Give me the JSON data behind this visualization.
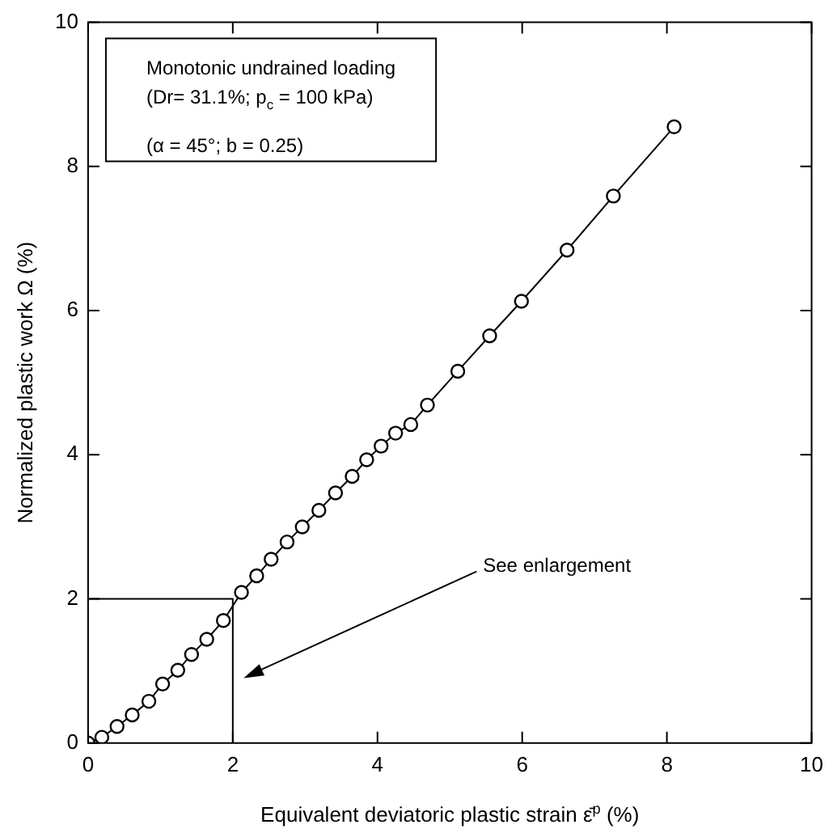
{
  "chart_data": {
    "type": "line",
    "xlabel": "Equivalent deviatoric plastic strain ε̄$^{p}$ (%)",
    "ylabel": "Normalized plastic work Ω (%)",
    "xlim": [
      0,
      10
    ],
    "ylim": [
      0,
      10
    ],
    "xticks": [
      0,
      2,
      4,
      6,
      8,
      10
    ],
    "yticks": [
      0,
      2,
      4,
      6,
      8,
      10
    ],
    "grid": false,
    "marker": "circle",
    "line_style": "solid",
    "annotations": [
      "Monotonic undrained loading",
      "(Dr= 31.1%; p$_{c}$ = 100 kPa)",
      "(α = 45°; b = 0.25)",
      "See enlargement"
    ],
    "series": [
      {
        "color": "#000000",
        "x": [
          0,
          0.19,
          0.4,
          0.61,
          0.84,
          1.03,
          1.24,
          1.43,
          1.64,
          1.87,
          2.12,
          2.33,
          2.53,
          2.75,
          2.96,
          3.19,
          3.42,
          3.65,
          3.85,
          4.05,
          4.25,
          4.46,
          4.69,
          5.11,
          5.55,
          5.99,
          6.62,
          7.26,
          8.1
        ],
        "values": [
          0,
          0.08,
          0.23,
          0.39,
          0.58,
          0.82,
          1.01,
          1.23,
          1.44,
          1.7,
          2.09,
          2.32,
          2.55,
          2.79,
          3.0,
          3.23,
          3.47,
          3.7,
          3.93,
          4.12,
          4.3,
          4.42,
          4.69,
          5.16,
          5.65,
          6.13,
          6.84,
          7.59,
          8.55
        ]
      },
      {
        "type": "line",
        "color": "#000000",
        "marker": "none",
        "x": [
          0,
          2,
          2
        ],
        "values": [
          2,
          2,
          0
        ]
      }
    ]
  }
}
